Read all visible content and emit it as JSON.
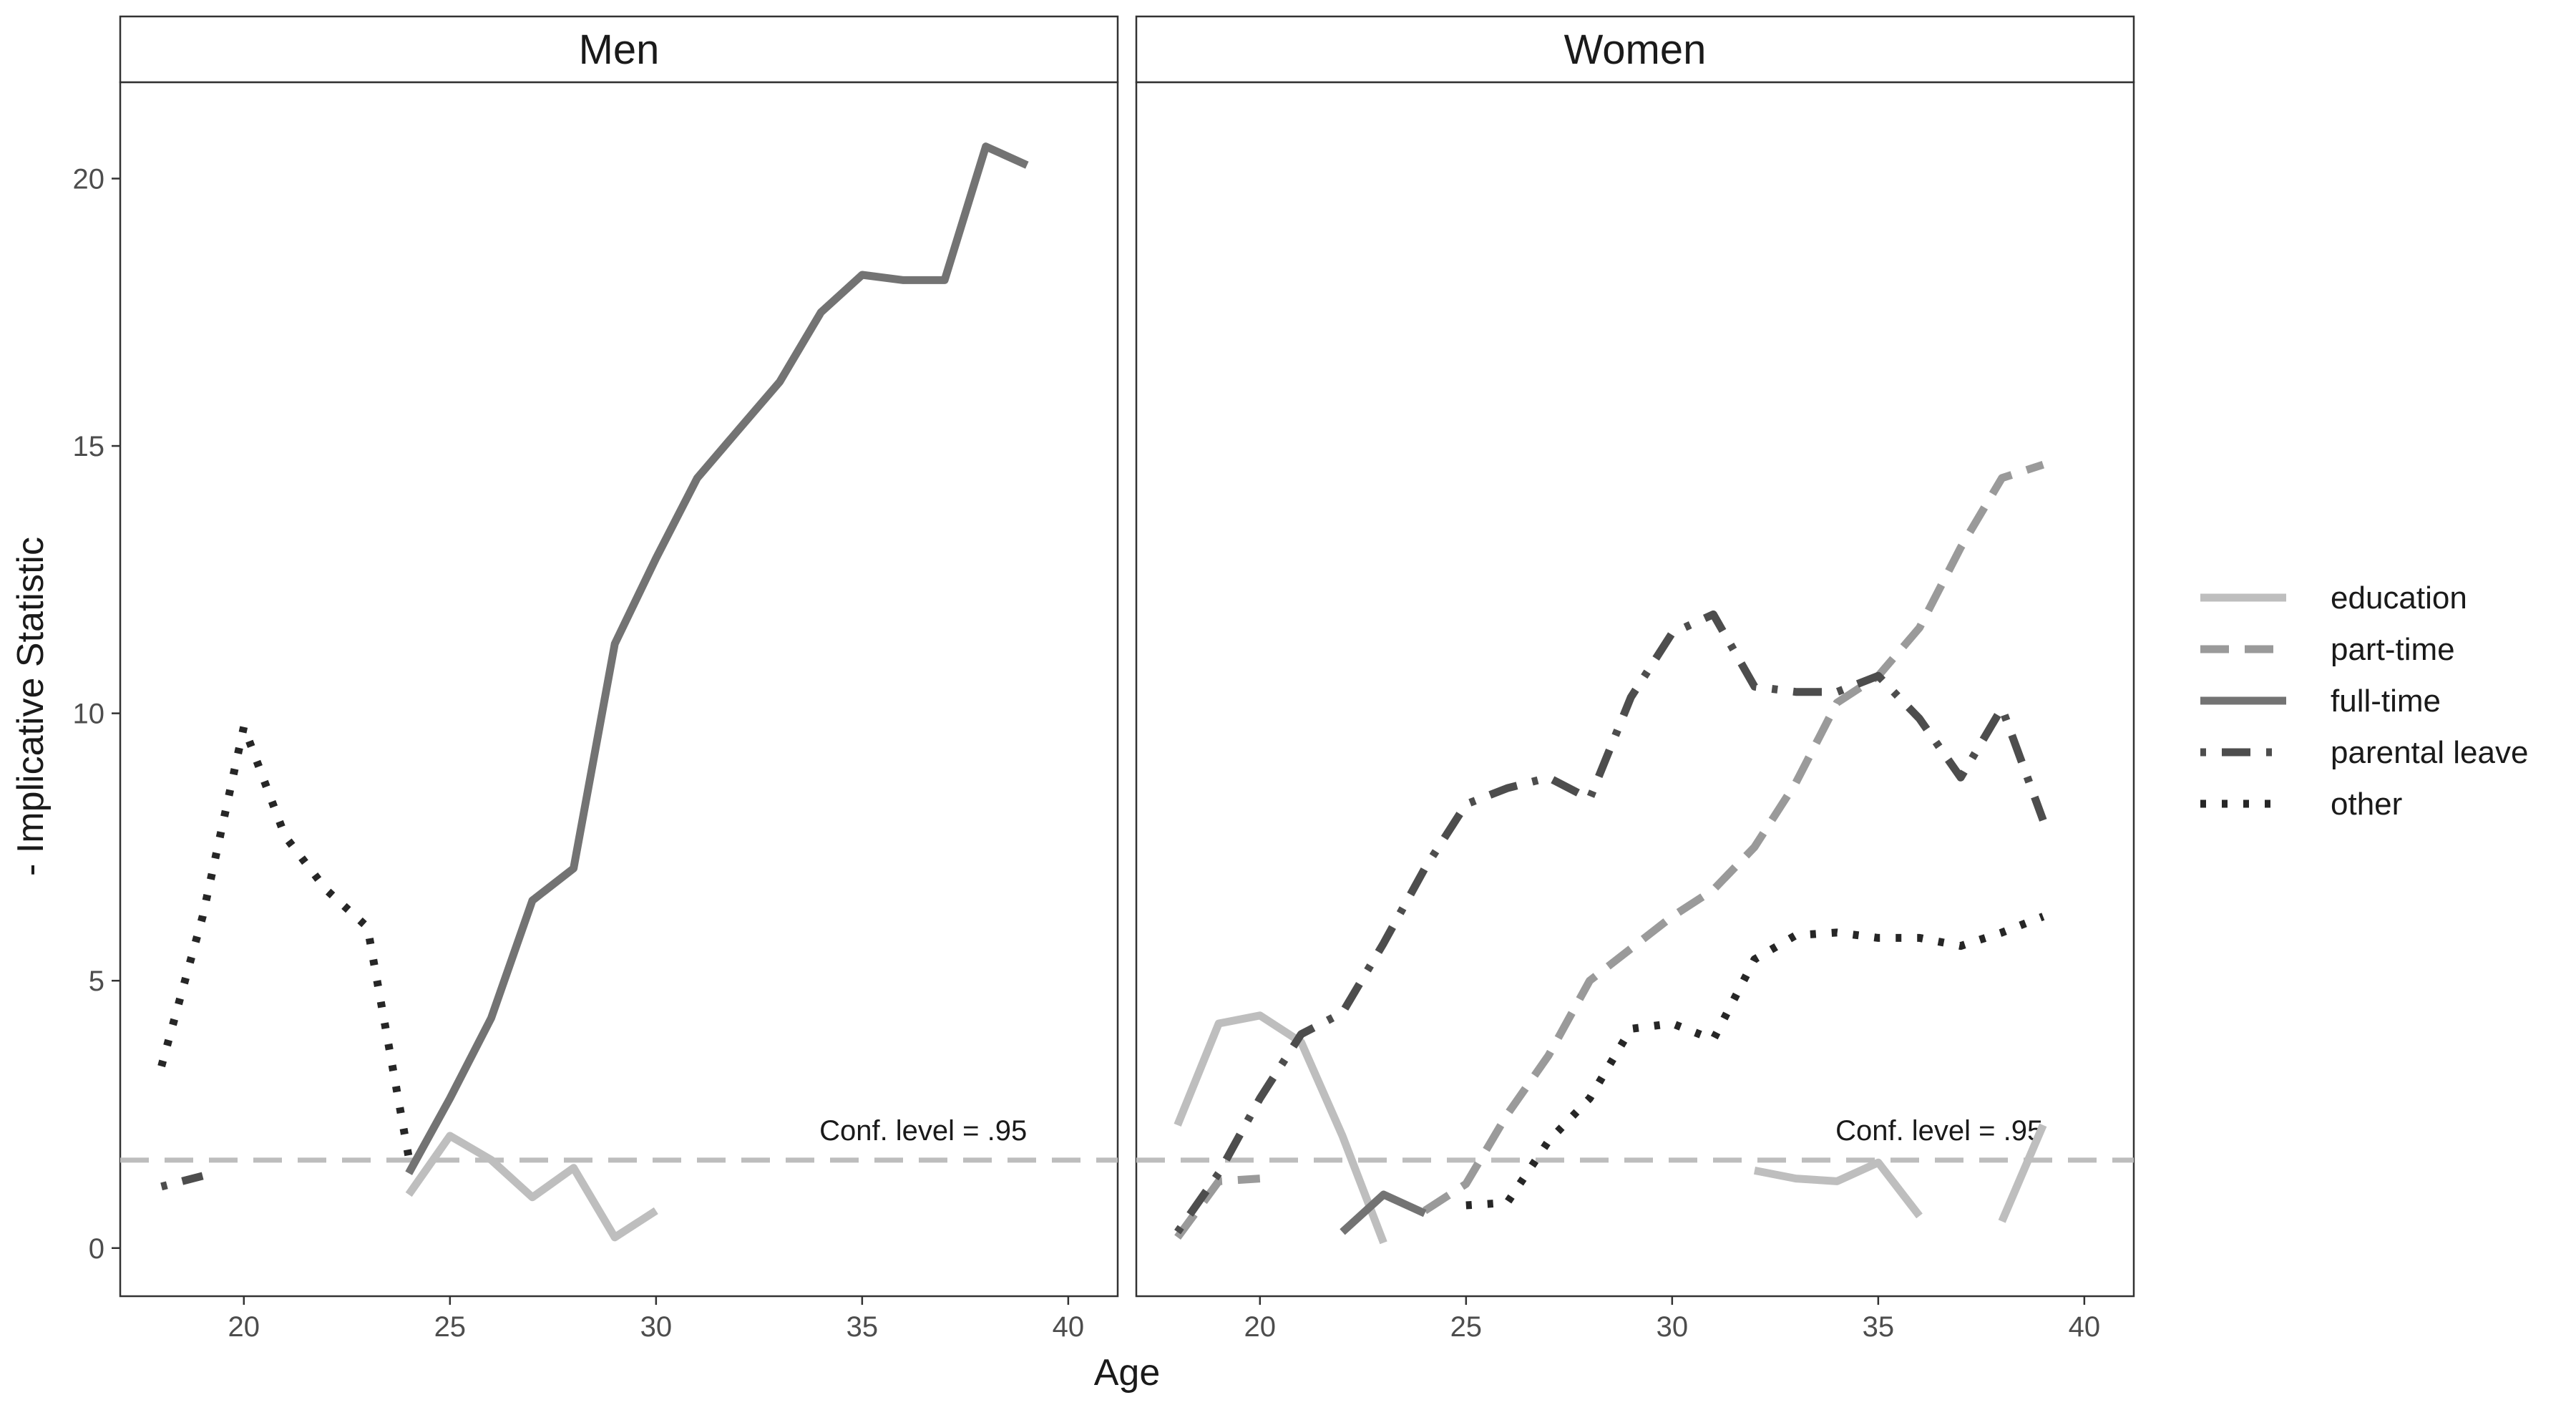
{
  "chart_data": {
    "type": "line",
    "xlabel": "Age",
    "ylabel": "- Implicative Statistic",
    "xlim": [
      17,
      41.2
    ],
    "ylim": [
      -0.9,
      21.8
    ],
    "x_ticks": [
      20,
      25,
      30,
      35,
      40
    ],
    "y_ticks": [
      0,
      5,
      10,
      15,
      20
    ],
    "grid": false,
    "legend_position": "right",
    "reference_line": {
      "y": 1.645,
      "label": "Conf. level = .95",
      "color": "#bdbdbd"
    },
    "series_styles": [
      {
        "name": "education",
        "color": "#bebebe",
        "dash": "none"
      },
      {
        "name": "part-time",
        "color": "#9a9a9a",
        "dash": "dash"
      },
      {
        "name": "full-time",
        "color": "#737373",
        "dash": "none"
      },
      {
        "name": "parental leave",
        "color": "#4d4d4d",
        "dash": "dotdash"
      },
      {
        "name": "other",
        "color": "#262626",
        "dash": "dot"
      }
    ],
    "panels": [
      {
        "title": "Men",
        "series": [
          {
            "name": "education",
            "segments": [
              [
                [
                  24,
                  1.0
                ],
                [
                  25,
                  2.1
                ],
                [
                  26,
                  1.65
                ],
                [
                  27,
                  0.95
                ],
                [
                  28,
                  1.5
                ],
                [
                  29,
                  0.2
                ],
                [
                  30,
                  0.7
                ]
              ]
            ]
          },
          {
            "name": "part-time",
            "segments": []
          },
          {
            "name": "full-time",
            "segments": [
              [
                [
                  24,
                  1.4
                ],
                [
                  25,
                  2.8
                ],
                [
                  26,
                  4.3
                ],
                [
                  27,
                  6.5
                ],
                [
                  28,
                  7.1
                ],
                [
                  29,
                  11.3
                ],
                [
                  30,
                  12.9
                ],
                [
                  31,
                  14.4
                ],
                [
                  32,
                  15.3
                ],
                [
                  33,
                  16.2
                ],
                [
                  34,
                  17.5
                ],
                [
                  35,
                  18.2
                ],
                [
                  36,
                  18.1
                ],
                [
                  37,
                  18.1
                ],
                [
                  38,
                  20.6
                ],
                [
                  39,
                  20.25
                ]
              ]
            ]
          },
          {
            "name": "parental leave",
            "segments": [
              [
                [
                  18,
                  1.15
                ],
                [
                  19,
                  1.35
                ]
              ]
            ]
          },
          {
            "name": "other",
            "segments": [
              [
                [
                  18,
                  3.4
                ],
                [
                  19,
                  6.2
                ],
                [
                  20,
                  9.75
                ],
                [
                  21,
                  7.7
                ],
                [
                  22,
                  6.7
                ],
                [
                  23,
                  6.0
                ],
                [
                  24,
                  1.7
                ]
              ]
            ]
          }
        ]
      },
      {
        "title": "Women",
        "series": [
          {
            "name": "education",
            "segments": [
              [
                [
                  18,
                  2.3
                ],
                [
                  19,
                  4.2
                ],
                [
                  20,
                  4.35
                ],
                [
                  21,
                  3.85
                ],
                [
                  22,
                  2.1
                ],
                [
                  23,
                  0.1
                ]
              ],
              [
                [
                  32,
                  1.45
                ],
                [
                  33,
                  1.3
                ],
                [
                  34,
                  1.25
                ],
                [
                  35,
                  1.6
                ],
                [
                  36,
                  0.6
                ]
              ],
              [
                [
                  38,
                  0.5
                ],
                [
                  39,
                  2.3
                ]
              ]
            ]
          },
          {
            "name": "part-time",
            "segments": [
              [
                [
                  18,
                  0.2
                ],
                [
                  19,
                  1.25
                ],
                [
                  20,
                  1.3
                ]
              ],
              [
                [
                  24,
                  0.7
                ],
                [
                  25,
                  1.2
                ],
                [
                  26,
                  2.5
                ],
                [
                  27,
                  3.6
                ],
                [
                  28,
                  5.0
                ],
                [
                  29,
                  5.6
                ],
                [
                  30,
                  6.2
                ],
                [
                  31,
                  6.7
                ],
                [
                  32,
                  7.5
                ],
                [
                  33,
                  8.7
                ],
                [
                  34,
                  10.2
                ],
                [
                  35,
                  10.7
                ],
                [
                  36,
                  11.6
                ],
                [
                  37,
                  13.1
                ],
                [
                  38,
                  14.4
                ],
                [
                  39,
                  14.65
                ]
              ]
            ]
          },
          {
            "name": "full-time",
            "segments": [
              [
                [
                  22,
                  0.3
                ],
                [
                  23,
                  1.0
                ],
                [
                  24,
                  0.65
                ]
              ]
            ]
          },
          {
            "name": "parental leave",
            "segments": [
              [
                [
                  18,
                  0.3
                ],
                [
                  19,
                  1.4
                ],
                [
                  20,
                  2.8
                ],
                [
                  21,
                  4.0
                ],
                [
                  22,
                  4.4
                ],
                [
                  23,
                  5.7
                ],
                [
                  24,
                  7.1
                ],
                [
                  25,
                  8.3
                ],
                [
                  26,
                  8.6
                ],
                [
                  27,
                  8.8
                ],
                [
                  28,
                  8.4
                ],
                [
                  29,
                  10.3
                ],
                [
                  30,
                  11.5
                ],
                [
                  31,
                  11.85
                ],
                [
                  32,
                  10.5
                ],
                [
                  33,
                  10.4
                ],
                [
                  34,
                  10.4
                ],
                [
                  35,
                  10.7
                ],
                [
                  36,
                  9.9
                ],
                [
                  37,
                  8.8
                ],
                [
                  38,
                  10.1
                ],
                [
                  39,
                  8.0
                ]
              ]
            ]
          },
          {
            "name": "other",
            "segments": [
              [
                [
                  25,
                  0.8
                ],
                [
                  26,
                  0.85
                ],
                [
                  27,
                  2.0
                ],
                [
                  28,
                  2.8
                ],
                [
                  29,
                  4.1
                ],
                [
                  30,
                  4.2
                ],
                [
                  31,
                  3.9
                ],
                [
                  32,
                  5.4
                ],
                [
                  33,
                  5.85
                ],
                [
                  34,
                  5.9
                ],
                [
                  35,
                  5.8
                ],
                [
                  36,
                  5.8
                ],
                [
                  37,
                  5.65
                ],
                [
                  38,
                  5.9
                ],
                [
                  39,
                  6.2
                ]
              ]
            ]
          }
        ]
      }
    ]
  }
}
